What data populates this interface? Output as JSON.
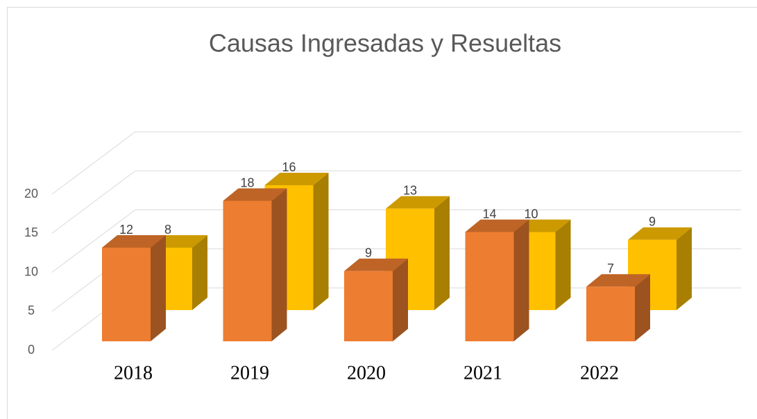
{
  "chart_data": {
    "type": "bar3d",
    "title": "Causas Ingresadas y Resueltas",
    "categories": [
      "2018",
      "2019",
      "2020",
      "2021",
      "2022"
    ],
    "series": [
      {
        "color": "#ED7D31",
        "values": [
          12,
          18,
          9,
          14,
          7
        ]
      },
      {
        "color": "#FFC000",
        "values": [
          8,
          16,
          13,
          10,
          9
        ]
      }
    ],
    "ylim": [
      0,
      20
    ],
    "yticks": [
      0,
      5,
      10,
      15,
      20
    ],
    "grid": true
  }
}
